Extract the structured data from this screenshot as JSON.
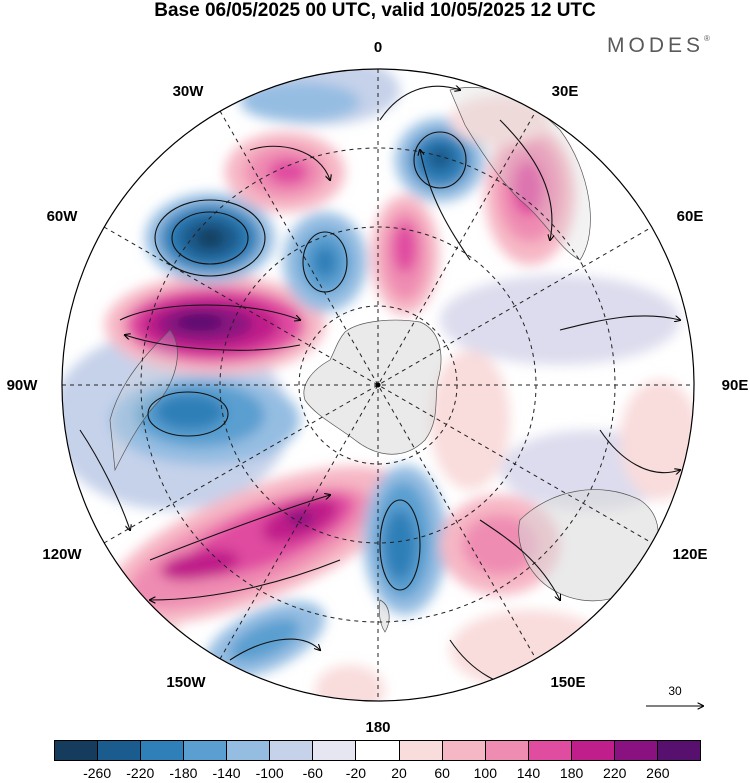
{
  "title": "Base 06/05/2025 00 UTC, valid 10/05/2025 12 UTC",
  "brand": "MODES",
  "brand_mark": "®",
  "longitude_labels": {
    "lon_0": "0",
    "lon_30e": "30E",
    "lon_60e": "60E",
    "lon_90e": "90E",
    "lon_120e": "120E",
    "lon_150e": "150E",
    "lon_180": "180",
    "lon_150w": "150W",
    "lon_120w": "120W",
    "lon_90w": "90W",
    "lon_60w": "60W",
    "lon_30w": "30W"
  },
  "vector_reference": "30",
  "colorbar": {
    "colors": [
      "#153c5c",
      "#1a5c8e",
      "#2f7fb8",
      "#5a9fd0",
      "#95bde2",
      "#c6d2ea",
      "#e6e6f2",
      "#ffffff",
      "#f9dcdc",
      "#f6b7c5",
      "#ef8cb2",
      "#e04ca0",
      "#c01e8a",
      "#8a1280",
      "#58106e"
    ],
    "ticks": [
      "-260",
      "-220",
      "-180",
      "-140",
      "-100",
      "-60",
      "-20",
      "20",
      "60",
      "100",
      "140",
      "180",
      "220",
      "260"
    ]
  }
}
